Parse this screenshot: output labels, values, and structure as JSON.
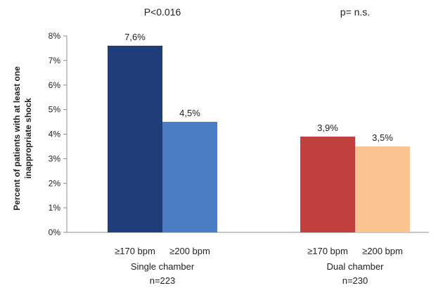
{
  "chart_data": {
    "type": "bar",
    "ylabel": "Percent of patients with at least one inappropriate shock",
    "ylabel_lines": [
      "Percent of patients with at least one",
      "inappropriate shock"
    ],
    "ylim": [
      0,
      8
    ],
    "yticks": [
      0,
      1,
      2,
      3,
      4,
      5,
      6,
      7,
      8
    ],
    "ytick_labels": [
      "0%",
      "1%",
      "2%",
      "3%",
      "4%",
      "5%",
      "6%",
      "7%",
      "8%"
    ],
    "grid": false,
    "groups": [
      {
        "name": "Single chamber",
        "n_label": "n=223",
        "significance": "P<0.016",
        "bars": [
          {
            "category": "≥170 bpm",
            "value": 7.6,
            "label": "7,6%",
            "color": "#1f3d78"
          },
          {
            "category": "≥200 bpm",
            "value": 4.5,
            "label": "4,5%",
            "color": "#4a7dc4"
          }
        ]
      },
      {
        "name": "Dual chamber",
        "n_label": "n=230",
        "significance": "p= n.s.",
        "bars": [
          {
            "category": "≥170 bpm",
            "value": 3.9,
            "label": "3,9%",
            "color": "#c0403e"
          },
          {
            "category": "≥200 bpm",
            "value": 3.5,
            "label": "3,5%",
            "color": "#fbc490"
          }
        ]
      }
    ]
  }
}
